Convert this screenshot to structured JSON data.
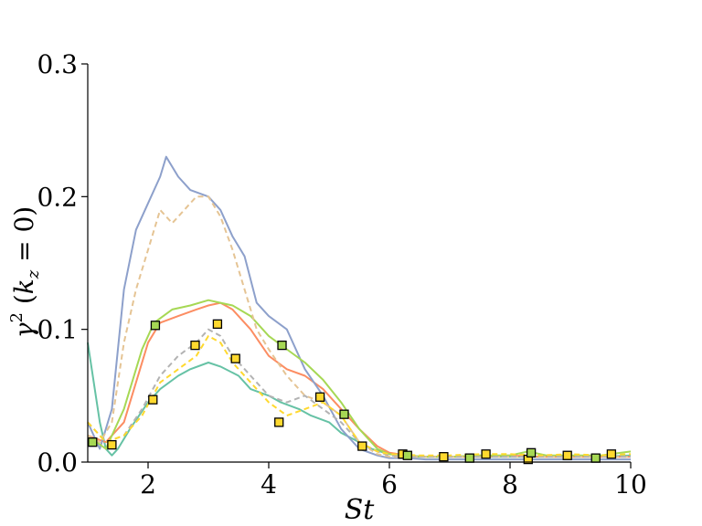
{
  "chart_data": {
    "type": "line",
    "xlabel": "St",
    "ylabel_parts": {
      "gamma": "γ",
      "sup": "2",
      "open": " (",
      "k": "k",
      "sub": "z",
      "eq": " = 0)"
    },
    "xlim": [
      1,
      10
    ],
    "ylim": [
      0,
      0.3
    ],
    "x_ticks": [
      2,
      4,
      6,
      8,
      10
    ],
    "x_tick_labels": [
      "2",
      "4",
      "6",
      "8",
      "10"
    ],
    "y_ticks": [
      0.0,
      0.1,
      0.2,
      0.3
    ],
    "y_tick_labels": [
      "0.0",
      "0.1",
      "0.2",
      "0.3"
    ],
    "grid": false,
    "series": [
      {
        "color": "#66c2a5",
        "style": "solid",
        "x": [
          1.0,
          1.1,
          1.2,
          1.3,
          1.4,
          1.5,
          1.7,
          2.0,
          2.2,
          2.5,
          2.7,
          3.0,
          3.2,
          3.5,
          3.7,
          4.0,
          4.2,
          4.5,
          4.7,
          5.0,
          5.2,
          5.5,
          5.7,
          6.0,
          6.3,
          6.6,
          7.0,
          7.5,
          8.0,
          8.5,
          9.0,
          9.5,
          10.0
        ],
        "y": [
          0.09,
          0.06,
          0.03,
          0.01,
          0.005,
          0.01,
          0.025,
          0.045,
          0.055,
          0.065,
          0.07,
          0.075,
          0.072,
          0.065,
          0.055,
          0.05,
          0.045,
          0.04,
          0.035,
          0.03,
          0.022,
          0.015,
          0.01,
          0.006,
          0.004,
          0.004,
          0.004,
          0.004,
          0.004,
          0.004,
          0.004,
          0.004,
          0.005
        ]
      },
      {
        "color": "#fc8d62",
        "style": "solid",
        "x": [
          1.0,
          1.3,
          1.6,
          1.8,
          2.0,
          2.2,
          2.5,
          2.8,
          3.0,
          3.2,
          3.4,
          3.7,
          4.0,
          4.3,
          4.6,
          4.9,
          5.2,
          5.5,
          5.8,
          6.0,
          6.3,
          6.6,
          7.0,
          7.5,
          8.0,
          8.5,
          9.0,
          9.5,
          10.0
        ],
        "y": [
          0.02,
          0.015,
          0.03,
          0.06,
          0.09,
          0.105,
          0.11,
          0.115,
          0.118,
          0.12,
          0.115,
          0.1,
          0.08,
          0.07,
          0.065,
          0.055,
          0.04,
          0.025,
          0.012,
          0.007,
          0.005,
          0.004,
          0.004,
          0.004,
          0.005,
          0.004,
          0.004,
          0.004,
          0.004
        ]
      },
      {
        "color": "#8da0cb",
        "style": "solid",
        "x": [
          1.0,
          1.2,
          1.4,
          1.6,
          1.8,
          2.0,
          2.2,
          2.3,
          2.5,
          2.7,
          3.0,
          3.2,
          3.4,
          3.6,
          3.8,
          4.0,
          4.3,
          4.6,
          4.9,
          5.2,
          5.5,
          5.8,
          6.0,
          6.3,
          6.6,
          7.0,
          7.5,
          8.0,
          8.5,
          9.0,
          9.5,
          10.0
        ],
        "y": [
          0.03,
          0.01,
          0.04,
          0.13,
          0.175,
          0.195,
          0.215,
          0.23,
          0.215,
          0.205,
          0.2,
          0.19,
          0.17,
          0.155,
          0.12,
          0.11,
          0.1,
          0.07,
          0.05,
          0.025,
          0.01,
          0.005,
          0.003,
          0.003,
          0.002,
          0.002,
          0.002,
          0.002,
          0.002,
          0.002,
          0.002,
          0.002
        ]
      },
      {
        "color": "#a6d854",
        "style": "solid",
        "x": [
          1.0,
          1.3,
          1.6,
          1.9,
          2.1,
          2.4,
          2.7,
          3.0,
          3.2,
          3.4,
          3.7,
          4.0,
          4.3,
          4.6,
          4.9,
          5.2,
          5.5,
          5.8,
          6.0,
          6.3,
          6.6,
          7.0,
          7.5,
          8.0,
          8.3,
          8.6,
          9.0,
          9.5,
          10.0
        ],
        "y": [
          0.02,
          0.01,
          0.04,
          0.085,
          0.105,
          0.115,
          0.118,
          0.122,
          0.12,
          0.118,
          0.11,
          0.095,
          0.085,
          0.075,
          0.062,
          0.045,
          0.025,
          0.01,
          0.006,
          0.005,
          0.004,
          0.004,
          0.005,
          0.005,
          0.008,
          0.005,
          0.005,
          0.005,
          0.008
        ]
      },
      {
        "color": "#e5c494",
        "style": "dashed",
        "x": [
          1.0,
          1.2,
          1.4,
          1.6,
          1.8,
          2.0,
          2.2,
          2.4,
          2.6,
          2.8,
          3.0,
          3.2,
          3.4,
          3.6,
          3.8,
          4.0,
          4.3,
          4.6,
          4.9,
          5.2,
          5.5,
          5.8,
          6.0,
          6.3,
          6.6,
          7.0,
          7.5,
          8.0,
          8.5,
          9.0,
          9.5,
          10.0
        ],
        "y": [
          0.02,
          0.015,
          0.03,
          0.09,
          0.13,
          0.16,
          0.19,
          0.18,
          0.19,
          0.2,
          0.2,
          0.185,
          0.16,
          0.13,
          0.1,
          0.085,
          0.065,
          0.05,
          0.045,
          0.035,
          0.015,
          0.006,
          0.004,
          0.004,
          0.004,
          0.004,
          0.004,
          0.004,
          0.004,
          0.004,
          0.004,
          0.004
        ]
      },
      {
        "color": "#b3b3b3",
        "style": "dashed",
        "x": [
          1.0,
          1.3,
          1.6,
          1.9,
          2.2,
          2.5,
          2.8,
          3.0,
          3.2,
          3.4,
          3.7,
          4.0,
          4.3,
          4.6,
          4.9,
          5.2,
          5.5,
          5.8,
          6.0,
          6.5,
          7.0,
          7.5,
          8.0,
          8.5,
          9.0,
          9.5,
          10.0
        ],
        "y": [
          0.03,
          0.015,
          0.02,
          0.04,
          0.065,
          0.08,
          0.09,
          0.1,
          0.095,
          0.08,
          0.065,
          0.05,
          0.045,
          0.05,
          0.04,
          0.03,
          0.015,
          0.008,
          0.005,
          0.004,
          0.004,
          0.004,
          0.004,
          0.004,
          0.004,
          0.004,
          0.004
        ]
      },
      {
        "color": "#ffd92f",
        "style": "dashed",
        "x": [
          1.0,
          1.3,
          1.6,
          1.9,
          2.2,
          2.5,
          2.8,
          3.0,
          3.2,
          3.4,
          3.7,
          4.0,
          4.3,
          4.6,
          4.9,
          5.2,
          5.5,
          5.8,
          6.0,
          6.5,
          7.0,
          7.5,
          8.0,
          8.5,
          9.0,
          9.5,
          10.0
        ],
        "y": [
          0.03,
          0.015,
          0.02,
          0.035,
          0.06,
          0.07,
          0.08,
          0.095,
          0.09,
          0.075,
          0.06,
          0.045,
          0.035,
          0.04,
          0.045,
          0.035,
          0.015,
          0.008,
          0.006,
          0.005,
          0.005,
          0.006,
          0.006,
          0.005,
          0.006,
          0.005,
          0.006
        ]
      }
    ],
    "markers": [
      {
        "x": 1.08,
        "y": 0.015,
        "fill": "#a6d854"
      },
      {
        "x": 1.4,
        "y": 0.013,
        "fill": "#ffd92f"
      },
      {
        "x": 2.08,
        "y": 0.047,
        "fill": "#ffd92f"
      },
      {
        "x": 2.12,
        "y": 0.103,
        "fill": "#a6d854"
      },
      {
        "x": 2.78,
        "y": 0.088,
        "fill": "#ffd92f"
      },
      {
        "x": 3.15,
        "y": 0.104,
        "fill": "#ffd92f"
      },
      {
        "x": 3.45,
        "y": 0.078,
        "fill": "#ffd92f"
      },
      {
        "x": 4.17,
        "y": 0.03,
        "fill": "#ffd92f"
      },
      {
        "x": 4.22,
        "y": 0.088,
        "fill": "#a6d854"
      },
      {
        "x": 4.85,
        "y": 0.049,
        "fill": "#ffd92f"
      },
      {
        "x": 5.25,
        "y": 0.036,
        "fill": "#a6d854"
      },
      {
        "x": 5.55,
        "y": 0.012,
        "fill": "#ffd92f"
      },
      {
        "x": 6.22,
        "y": 0.006,
        "fill": "#ffd92f"
      },
      {
        "x": 6.3,
        "y": 0.005,
        "fill": "#a6d854"
      },
      {
        "x": 6.9,
        "y": 0.004,
        "fill": "#ffd92f"
      },
      {
        "x": 7.33,
        "y": 0.003,
        "fill": "#a6d854"
      },
      {
        "x": 7.6,
        "y": 0.006,
        "fill": "#ffd92f"
      },
      {
        "x": 8.3,
        "y": 0.002,
        "fill": "#ffd92f"
      },
      {
        "x": 8.35,
        "y": 0.007,
        "fill": "#a6d854"
      },
      {
        "x": 8.95,
        "y": 0.005,
        "fill": "#ffd92f"
      },
      {
        "x": 9.42,
        "y": 0.003,
        "fill": "#a6d854"
      },
      {
        "x": 9.68,
        "y": 0.006,
        "fill": "#ffd92f"
      }
    ]
  }
}
